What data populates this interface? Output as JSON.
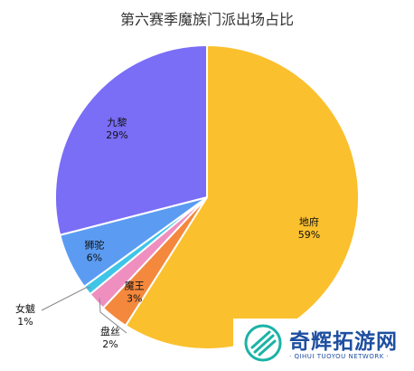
{
  "chart_data": {
    "type": "pie",
    "title": "第六赛季魔族门派出场占比",
    "slices": [
      {
        "name": "地府",
        "value": 59,
        "pct_label": "59%",
        "color": "#fbc02d"
      },
      {
        "name": "魔王",
        "value": 3,
        "pct_label": "3%",
        "color": "#f4883c"
      },
      {
        "name": "盘丝",
        "value": 2,
        "pct_label": "2%",
        "color": "#ee8fc0"
      },
      {
        "name": "女魃",
        "value": 1,
        "pct_label": "1%",
        "color": "#3fc5e7"
      },
      {
        "name": "狮驼",
        "value": 6,
        "pct_label": "6%",
        "color": "#5b9cf2"
      },
      {
        "name": "九黎",
        "value": 29,
        "pct_label": "29%",
        "color": "#7a6df6"
      }
    ],
    "start_angle_deg": 0,
    "direction": "clockwise"
  },
  "watermark": {
    "brand": "奇辉拓游网",
    "subtitle": "· QIHUI TUOYOU NETWORK ·"
  }
}
